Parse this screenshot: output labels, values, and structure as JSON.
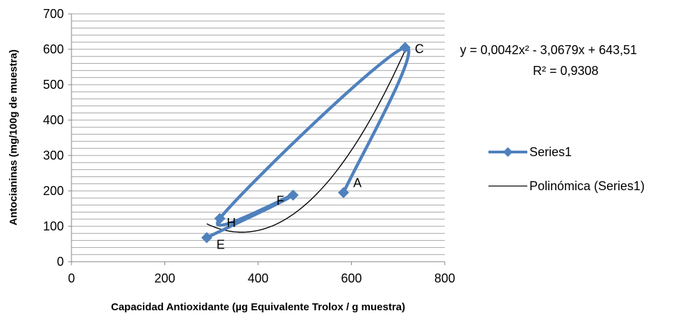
{
  "chart_data": {
    "type": "scatter",
    "xlabel": "Capacidad Antioxidante (µg Equivalente Trolox / g muestra)",
    "ylabel": "Antocianinas (mg/100g de muestra)",
    "xlim": [
      0,
      800
    ],
    "ylim": [
      0,
      700
    ],
    "x_ticks": [
      0,
      200,
      400,
      600,
      800
    ],
    "y_ticks": [
      0,
      100,
      200,
      300,
      400,
      500,
      600,
      700
    ],
    "y_gridlines": "minor, every 20",
    "series": [
      {
        "name": "Series1",
        "color": "#4F81BD",
        "marker": "diamond",
        "line": "smoothed",
        "points": [
          {
            "label": "A",
            "x": 583,
            "y": 195
          },
          {
            "label": "C",
            "x": 715,
            "y": 605
          },
          {
            "label": "H",
            "x": 318,
            "y": 122
          },
          {
            "label": "F",
            "x": 475,
            "y": 188
          },
          {
            "label": "E",
            "x": 290,
            "y": 68
          }
        ]
      }
    ],
    "trendline": {
      "name": "Polinómica (Series1)",
      "type": "polynomial",
      "order": 2,
      "color": "#000000",
      "coefficients": [
        0.0042,
        -3.0679,
        643.51
      ],
      "x_range": [
        290,
        715
      ],
      "equation_text": "y = 0,0042x² - 3,0679x + 643,51",
      "r2_text": "R² = 0,9308"
    },
    "legend": {
      "position": "right",
      "entries": [
        "Series1",
        "Polinómica (Series1)"
      ]
    }
  }
}
